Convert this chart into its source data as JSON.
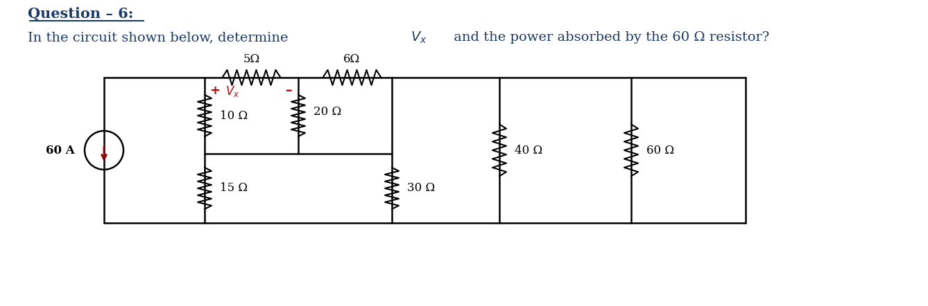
{
  "title": "Question – 6:",
  "subtitle_part1": "In the circuit shown below, determine ",
  "subtitle_vx": "$V_x$",
  "subtitle_part2": " and the power absorbed by the 60 Ω resistor?",
  "bg_color": "#ffffff",
  "text_color": "#1a3a6b",
  "circuit_color": "#000000",
  "vx_plus_color": "#cc0000",
  "vx_label_color": "#cc0000",
  "arrow_color": "#8B0000",
  "resistors": {
    "R1": "5Ω",
    "R2": "6Ω",
    "R3": "20 Ω",
    "R4": "10 Ω",
    "R5": "15 Ω",
    "R6": "30 Ω",
    "R7": "40 Ω",
    "R8": "60 Ω"
  },
  "source": "60 A"
}
